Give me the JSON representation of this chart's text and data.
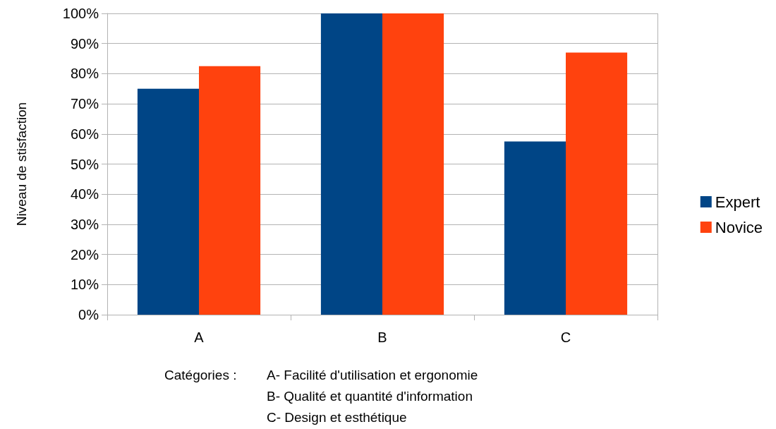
{
  "chart_data": {
    "type": "bar",
    "ylabel": "Niveau de stisfaction",
    "xlabel": "Catégories :",
    "annotations": [
      "A- Facilité d'utilisation et ergonomie",
      "B- Qualité et quantité d'information",
      "C- Design et esthétique"
    ],
    "categories": [
      "A",
      "B",
      "C"
    ],
    "series": [
      {
        "name": "Expert",
        "color": "#004586",
        "values": [
          75,
          100,
          57.5
        ]
      },
      {
        "name": "Novice",
        "color": "#ff420e",
        "values": [
          82.5,
          100,
          87
        ]
      }
    ],
    "ylim": [
      0,
      100
    ],
    "yticks": [
      {
        "value": 0,
        "label": "0%"
      },
      {
        "value": 10,
        "label": "10%"
      },
      {
        "value": 20,
        "label": "20%"
      },
      {
        "value": 30,
        "label": "30%"
      },
      {
        "value": 40,
        "label": "40%"
      },
      {
        "value": 50,
        "label": "50%"
      },
      {
        "value": 60,
        "label": "60%"
      },
      {
        "value": 70,
        "label": "70%"
      },
      {
        "value": 80,
        "label": "80%"
      },
      {
        "value": 90,
        "label": "90%"
      },
      {
        "value": 100,
        "label": "100%"
      }
    ],
    "grid": "y",
    "legend": "right"
  }
}
